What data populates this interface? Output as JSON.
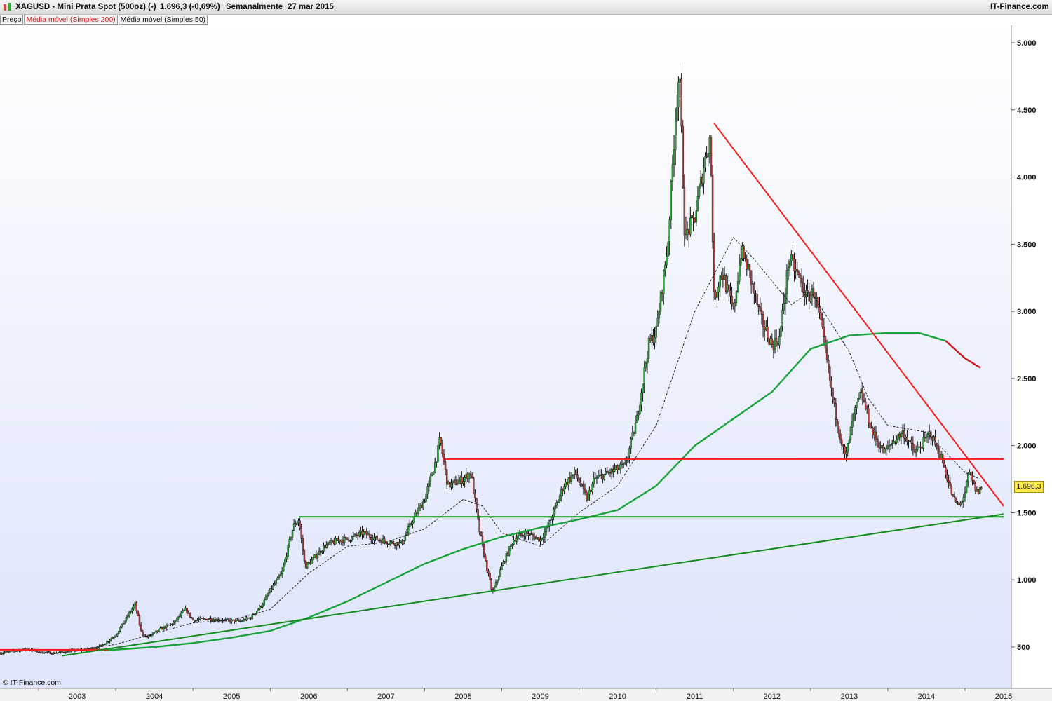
{
  "header": {
    "instrument": "XAGUSD - Mini Prata Spot (500oz) (-)",
    "quote": "1.696,3 (-0,69%)",
    "period": "Semanalmente",
    "date": "27 mar 2015",
    "brand": "IT-Finance.com"
  },
  "legend": {
    "price": "Preço",
    "ma200": "Média móvel (Simples 200)",
    "ma50": "Média móvel (Simples 50)"
  },
  "copyright": "© IT-Finance.com",
  "last_price_label": "1.696,3",
  "colors": {
    "background_top": "#ffffff",
    "background_bottom": "#dde4fb",
    "ma200_rising": "#1aa33a",
    "ma200_falling": "#d01818",
    "trendline_red": "#ff1a1a",
    "trendline_green": "#138c1c",
    "candle_up": "#2fae3a",
    "candle_down": "#c23a3a",
    "last_price_bg": "#ffe84a"
  },
  "chart_data": {
    "type": "candlestick",
    "frequency": "weekly",
    "x_range": [
      "2002-06",
      "2015-06"
    ],
    "year_labels": [
      "2003",
      "2004",
      "2005",
      "2006",
      "2007",
      "2008",
      "2009",
      "2010",
      "2011",
      "2012",
      "2013",
      "2014",
      "2015"
    ],
    "y_range": [
      270,
      5300
    ],
    "y_ticks": [
      500,
      1000,
      1500,
      2000,
      2500,
      3000,
      3500,
      4000,
      4500,
      5000
    ],
    "y_tick_labels": [
      "500",
      "1.000",
      "1.500",
      "2.000",
      "2.500",
      "3.000",
      "3.500",
      "4.000",
      "4.500",
      "5.000"
    ],
    "price_path": [
      [
        2002.5,
        455
      ],
      [
        2002.85,
        485
      ],
      [
        2003.0,
        465
      ],
      [
        2003.2,
        455
      ],
      [
        2003.4,
        470
      ],
      [
        2003.6,
        480
      ],
      [
        2003.8,
        505
      ],
      [
        2004.0,
        590
      ],
      [
        2004.25,
        820
      ],
      [
        2004.33,
        610
      ],
      [
        2004.4,
        570
      ],
      [
        2004.6,
        640
      ],
      [
        2004.75,
        680
      ],
      [
        2004.9,
        780
      ],
      [
        2005.0,
        700
      ],
      [
        2005.2,
        710
      ],
      [
        2005.4,
        700
      ],
      [
        2005.6,
        690
      ],
      [
        2005.75,
        720
      ],
      [
        2005.9,
        820
      ],
      [
        2006.0,
        920
      ],
      [
        2006.15,
        1050
      ],
      [
        2006.3,
        1400
      ],
      [
        2006.37,
        1450
      ],
      [
        2006.45,
        1100
      ],
      [
        2006.55,
        1150
      ],
      [
        2006.7,
        1250
      ],
      [
        2006.9,
        1300
      ],
      [
        2007.0,
        1300
      ],
      [
        2007.2,
        1350
      ],
      [
        2007.4,
        1300
      ],
      [
        2007.55,
        1280
      ],
      [
        2007.7,
        1270
      ],
      [
        2007.85,
        1450
      ],
      [
        2008.0,
        1600
      ],
      [
        2008.15,
        1900
      ],
      [
        2008.2,
        2050
      ],
      [
        2008.3,
        1700
      ],
      [
        2008.5,
        1750
      ],
      [
        2008.6,
        1800
      ],
      [
        2008.7,
        1400
      ],
      [
        2008.8,
        1100
      ],
      [
        2008.88,
        900
      ],
      [
        2009.0,
        1100
      ],
      [
        2009.15,
        1300
      ],
      [
        2009.3,
        1350
      ],
      [
        2009.5,
        1300
      ],
      [
        2009.6,
        1400
      ],
      [
        2009.8,
        1700
      ],
      [
        2009.95,
        1800
      ],
      [
        2010.1,
        1600
      ],
      [
        2010.2,
        1750
      ],
      [
        2010.4,
        1800
      ],
      [
        2010.6,
        1850
      ],
      [
        2010.75,
        2200
      ],
      [
        2010.9,
        2750
      ],
      [
        2011.0,
        2850
      ],
      [
        2011.15,
        3500
      ],
      [
        2011.25,
        4450
      ],
      [
        2011.3,
        4800
      ],
      [
        2011.37,
        3550
      ],
      [
        2011.5,
        3700
      ],
      [
        2011.62,
        4100
      ],
      [
        2011.7,
        4300
      ],
      [
        2011.75,
        3100
      ],
      [
        2011.85,
        3300
      ],
      [
        2012.0,
        3000
      ],
      [
        2012.1,
        3450
      ],
      [
        2012.2,
        3300
      ],
      [
        2012.35,
        2950
      ],
      [
        2012.5,
        2750
      ],
      [
        2012.6,
        2800
      ],
      [
        2012.72,
        3400
      ],
      [
        2012.85,
        3250
      ],
      [
        2012.95,
        3100
      ],
      [
        2013.05,
        3150
      ],
      [
        2013.15,
        2850
      ],
      [
        2013.3,
        2300
      ],
      [
        2013.45,
        1900
      ],
      [
        2013.55,
        2200
      ],
      [
        2013.65,
        2400
      ],
      [
        2013.8,
        2100
      ],
      [
        2013.95,
        1950
      ],
      [
        2014.1,
        2050
      ],
      [
        2014.2,
        2100
      ],
      [
        2014.35,
        1950
      ],
      [
        2014.5,
        2050
      ],
      [
        2014.55,
        2100
      ],
      [
        2014.7,
        1900
      ],
      [
        2014.85,
        1600
      ],
      [
        2014.93,
        1550
      ],
      [
        2015.0,
        1650
      ],
      [
        2015.05,
        1800
      ],
      [
        2015.15,
        1650
      ],
      [
        2015.23,
        1696.3
      ]
    ],
    "ma200_path": [
      [
        2003.85,
        475
      ],
      [
        2004.5,
        500
      ],
      [
        2005.0,
        530
      ],
      [
        2005.5,
        570
      ],
      [
        2006.0,
        620
      ],
      [
        2006.5,
        720
      ],
      [
        2007.0,
        840
      ],
      [
        2007.5,
        980
      ],
      [
        2008.0,
        1120
      ],
      [
        2008.5,
        1230
      ],
      [
        2009.0,
        1320
      ],
      [
        2009.5,
        1390
      ],
      [
        2010.0,
        1450
      ],
      [
        2010.5,
        1520
      ],
      [
        2011.0,
        1700
      ],
      [
        2011.5,
        2000
      ],
      [
        2012.0,
        2200
      ],
      [
        2012.5,
        2400
      ],
      [
        2013.0,
        2720
      ],
      [
        2013.5,
        2820
      ],
      [
        2014.0,
        2840
      ],
      [
        2014.4,
        2840
      ],
      [
        2014.75,
        2780
      ],
      [
        2015.0,
        2650
      ],
      [
        2015.2,
        2580
      ]
    ],
    "ma200_turn_index": 22,
    "ma50_path": [
      [
        2003.0,
        470
      ],
      [
        2003.5,
        475
      ],
      [
        2004.0,
        520
      ],
      [
        2004.5,
        600
      ],
      [
        2005.0,
        680
      ],
      [
        2005.5,
        700
      ],
      [
        2006.0,
        780
      ],
      [
        2006.5,
        1050
      ],
      [
        2007.0,
        1250
      ],
      [
        2007.5,
        1280
      ],
      [
        2008.0,
        1380
      ],
      [
        2008.5,
        1600
      ],
      [
        2008.75,
        1550
      ],
      [
        2009.0,
        1350
      ],
      [
        2009.5,
        1250
      ],
      [
        2010.0,
        1500
      ],
      [
        2010.5,
        1700
      ],
      [
        2011.0,
        2150
      ],
      [
        2011.5,
        3000
      ],
      [
        2012.0,
        3550
      ],
      [
        2012.25,
        3400
      ],
      [
        2012.75,
        3050
      ],
      [
        2013.0,
        3150
      ],
      [
        2013.5,
        2700
      ],
      [
        2013.75,
        2350
      ],
      [
        2014.0,
        2150
      ],
      [
        2014.5,
        2100
      ],
      [
        2015.0,
        1800
      ],
      [
        2015.2,
        1750
      ]
    ],
    "trendlines": [
      {
        "color": "red",
        "from": [
          2011.75,
          4400
        ],
        "to": [
          2015.5,
          1550
        ]
      },
      {
        "color": "red",
        "from": [
          2008.25,
          1900
        ],
        "to": [
          2015.5,
          1900
        ]
      },
      {
        "color": "red",
        "from": [
          2002.5,
          480
        ],
        "to": [
          2003.9,
          480
        ]
      },
      {
        "color": "green",
        "from": [
          2006.37,
          1470
        ],
        "to": [
          2015.5,
          1470
        ]
      },
      {
        "color": "green",
        "from": [
          2003.3,
          435
        ],
        "to": [
          2015.5,
          1490
        ]
      }
    ],
    "last_value": 1696.3
  }
}
